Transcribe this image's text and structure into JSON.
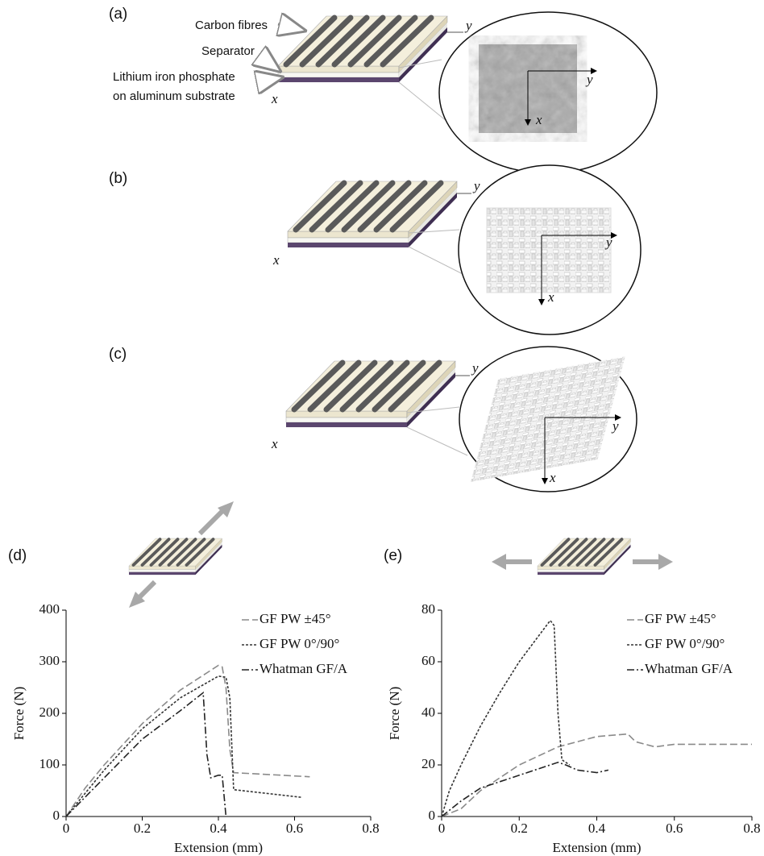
{
  "diagrams": [
    {
      "label": "(a)",
      "annotations": [
        "Carbon fibres",
        "Separator",
        "Lithium iron phosphate",
        "on aluminum substrate"
      ],
      "axis_labels": [
        "y",
        "x"
      ],
      "inset_axis_labels": [
        "y",
        "x"
      ]
    },
    {
      "label": "(b)",
      "axis_labels": [
        "y",
        "x"
      ],
      "inset_axis_labels": [
        "y",
        "x"
      ]
    },
    {
      "label": "(c)",
      "axis_labels": [
        "y",
        "x"
      ],
      "inset_axis_labels": [
        "y",
        "x"
      ]
    }
  ],
  "chart_data": [
    {
      "type": "line",
      "panel_label": "(d)",
      "xlabel": "Extension (mm)",
      "ylabel": "Force (N)",
      "xlim": [
        0,
        0.8
      ],
      "xticks": [
        0,
        0.2,
        0.4,
        0.6,
        0.8
      ],
      "ylim": [
        0,
        400
      ],
      "yticks": [
        0,
        100,
        200,
        300,
        400
      ],
      "grid": false,
      "series": [
        {
          "name": "GF PW ±45°",
          "color": "#8a8a8a",
          "style": "dashed",
          "x": [
            0,
            0.05,
            0.1,
            0.2,
            0.3,
            0.4,
            0.41,
            0.42,
            0.43,
            0.44,
            0.64
          ],
          "values": [
            0,
            55,
            100,
            180,
            245,
            293,
            290,
            250,
            130,
            85,
            77
          ]
        },
        {
          "name": "GF PW 0°/90°",
          "color": "#333333",
          "style": "dotted",
          "x": [
            0,
            0.1,
            0.2,
            0.3,
            0.4,
            0.42,
            0.43,
            0.44,
            0.62
          ],
          "values": [
            0,
            90,
            170,
            230,
            272,
            270,
            230,
            52,
            37
          ]
        },
        {
          "name": "Whatman GF/A",
          "color": "#222222",
          "style": "dashdot",
          "x": [
            0,
            0.1,
            0.2,
            0.3,
            0.36,
            0.37,
            0.38,
            0.4,
            0.41,
            0.42
          ],
          "values": [
            0,
            75,
            150,
            205,
            240,
            120,
            75,
            80,
            80,
            0
          ]
        }
      ]
    },
    {
      "type": "line",
      "panel_label": "(e)",
      "xlabel": "Extension (mm)",
      "ylabel": "Force (N)",
      "xlim": [
        0,
        0.8
      ],
      "xticks": [
        0,
        0.2,
        0.4,
        0.6,
        0.8
      ],
      "ylim": [
        0,
        80
      ],
      "yticks": [
        0,
        20,
        40,
        60,
        80
      ],
      "grid": false,
      "series": [
        {
          "name": "GF PW ±45°",
          "color": "#8a8a8a",
          "style": "dashed",
          "x": [
            0,
            0.05,
            0.1,
            0.2,
            0.3,
            0.4,
            0.48,
            0.5,
            0.55,
            0.6,
            0.8
          ],
          "values": [
            0,
            3,
            10,
            20,
            27,
            31,
            32,
            29,
            27,
            28,
            28
          ]
        },
        {
          "name": "GF PW 0°/90°",
          "color": "#333333",
          "style": "dotted",
          "x": [
            0,
            0.02,
            0.05,
            0.1,
            0.15,
            0.2,
            0.25,
            0.28,
            0.29,
            0.3,
            0.31,
            0.33
          ],
          "values": [
            0,
            10,
            20,
            35,
            48,
            60,
            70,
            76,
            74,
            40,
            22,
            20
          ]
        },
        {
          "name": "Whatman GF/A",
          "color": "#222222",
          "style": "dashdot",
          "x": [
            0,
            0.05,
            0.1,
            0.2,
            0.3,
            0.32,
            0.35,
            0.4,
            0.43
          ],
          "values": [
            0,
            6,
            11,
            16,
            21,
            20,
            18,
            17,
            18
          ]
        }
      ]
    }
  ]
}
